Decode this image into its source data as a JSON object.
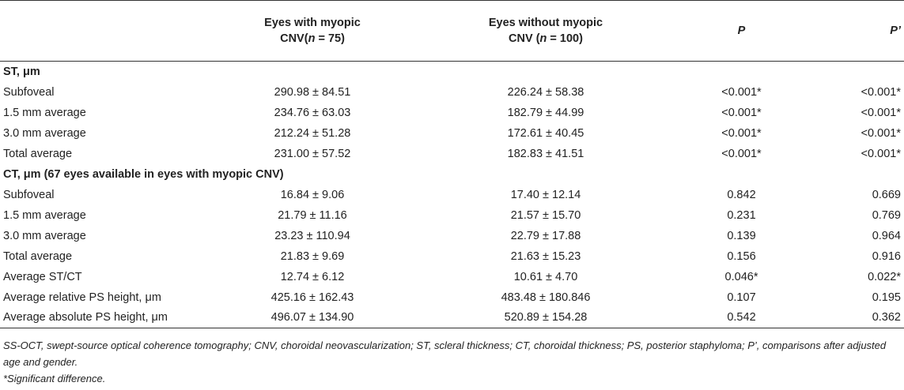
{
  "table": {
    "header": [
      [
        {
          "text": "Eyes with myopic CNV"
        },
        {
          "text": "("
        },
        {
          "text": "n",
          "italic": true
        },
        {
          "text": " = 75)"
        }
      ],
      [
        {
          "text": "Eyes without myopic CNV"
        },
        {
          "text": " ("
        },
        {
          "text": "n",
          "italic": true
        },
        {
          "text": " = 100)"
        }
      ],
      [
        {
          "text": "P",
          "italic": true
        }
      ],
      [
        {
          "text": "P’",
          "italic": true
        }
      ]
    ],
    "sections": [
      {
        "title": "ST, μm",
        "rows": [
          [
            "Subfoveal",
            "290.98 ± 84.51",
            "226.24 ± 58.38",
            "<0.001*",
            "<0.001*"
          ],
          [
            "1.5 mm average",
            "234.76 ± 63.03",
            "182.79 ± 44.99",
            "<0.001*",
            "<0.001*"
          ],
          [
            "3.0 mm average",
            "212.24 ± 51.28",
            "172.61 ± 40.45",
            "<0.001*",
            "<0.001*"
          ],
          [
            "Total average",
            "231.00 ± 57.52",
            "182.83 ± 41.51",
            "<0.001*",
            "<0.001*"
          ]
        ]
      },
      {
        "title": "CT, μm (67 eyes available in eyes with myopic CNV)",
        "rows": [
          [
            "Subfoveal",
            "16.84 ± 9.06",
            "17.40 ± 12.14",
            "0.842",
            "0.669"
          ],
          [
            "1.5 mm average",
            "21.79 ± 11.16",
            "21.57 ± 15.70",
            "0.231",
            "0.769"
          ],
          [
            "3.0 mm average",
            "23.23 ± 110.94",
            "22.79 ± 17.88",
            "0.139",
            "0.964"
          ],
          [
            "Total average",
            "21.83 ± 9.69",
            "21.63 ± 15.23",
            "0.156",
            "0.916"
          ],
          [
            "Average ST/CT",
            "12.74 ± 6.12",
            "10.61 ± 4.70",
            "0.046*",
            "0.022*"
          ],
          [
            "Average relative PS height, μm",
            "425.16 ± 162.43",
            "483.48 ± 180.846",
            "0.107",
            "0.195"
          ],
          [
            "Average absolute PS height, μm",
            "496.07 ± 134.90",
            "520.89 ± 154.28",
            "0.542",
            "0.362"
          ]
        ]
      }
    ],
    "footnotes": [
      "SS-OCT, swept-source optical coherence tomography; CNV, choroidal neovascularization; ST, scleral thickness; CT, choroidal thickness; PS, posterior staphyloma; P’, comparisons after adjusted age and gender.",
      "*Significant difference."
    ]
  }
}
